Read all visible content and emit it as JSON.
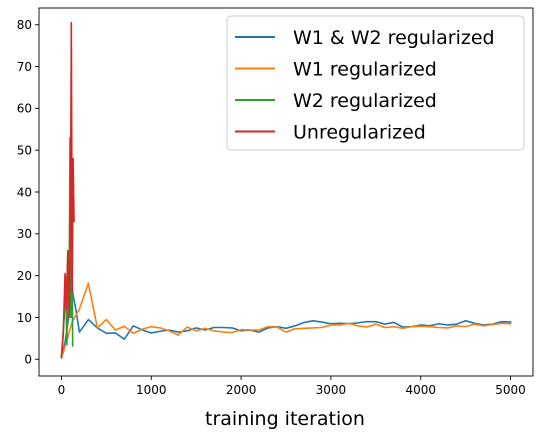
{
  "chart_data": {
    "type": "line",
    "title": "",
    "xlabel": "training iteration",
    "ylabel": "",
    "xlim": [
      -250,
      5250
    ],
    "ylim": [
      -4,
      84
    ],
    "xticks": [
      0,
      1000,
      2000,
      3000,
      4000,
      5000
    ],
    "yticks": [
      0,
      10,
      20,
      30,
      40,
      50,
      60,
      70,
      80
    ],
    "grid": false,
    "legend_position": "top-right",
    "series": [
      {
        "name": "W1 & W2 regularized",
        "color": "#1f77b4",
        "x": [
          0,
          40,
          80,
          120,
          160,
          200,
          300,
          400,
          500,
          600,
          700,
          800,
          900,
          1000,
          1100,
          1200,
          1300,
          1400,
          1500,
          1600,
          1700,
          1800,
          1900,
          2000,
          2100,
          2200,
          2300,
          2400,
          2500,
          2600,
          2700,
          2800,
          2900,
          3000,
          3100,
          3200,
          3300,
          3400,
          3500,
          3600,
          3700,
          3800,
          3900,
          4000,
          4100,
          4200,
          4300,
          4400,
          4500,
          4600,
          4700,
          4800,
          4900,
          5000
        ],
        "y": [
          0.5,
          4,
          10,
          16.5,
          12,
          6.5,
          9.5,
          7.5,
          6.2,
          6.3,
          4.8,
          8,
          7,
          6.3,
          6.7,
          7,
          6.5,
          6.8,
          7.5,
          7,
          7.6,
          7.6,
          7.5,
          6.8,
          7,
          6.5,
          7.5,
          7.8,
          7.4,
          8,
          8.8,
          9.2,
          8.9,
          8.5,
          8.6,
          8.5,
          8.7,
          9,
          9,
          8.4,
          8.8,
          7.7,
          7.8,
          8.2,
          8,
          8.5,
          8.2,
          8.4,
          9.2,
          8.6,
          8.2,
          8.4,
          9,
          8.9
        ]
      },
      {
        "name": "W1 regularized",
        "color": "#ff7f0e",
        "x": [
          0,
          40,
          80,
          120,
          160,
          200,
          300,
          400,
          500,
          600,
          700,
          800,
          900,
          1000,
          1100,
          1200,
          1300,
          1400,
          1500,
          1600,
          1700,
          1800,
          1900,
          2000,
          2100,
          2200,
          2300,
          2400,
          2500,
          2600,
          2700,
          2800,
          2900,
          3000,
          3100,
          3200,
          3300,
          3400,
          3500,
          3600,
          3700,
          3800,
          3900,
          4000,
          4100,
          4200,
          4300,
          4400,
          4500,
          4600,
          4700,
          4800,
          4900,
          5000
        ],
        "y": [
          0.3,
          3,
          6,
          9,
          10.5,
          12,
          18.2,
          7.5,
          9.5,
          7,
          7.9,
          6.2,
          7.2,
          7.8,
          7.5,
          6.8,
          5.8,
          7.7,
          6.8,
          7.4,
          6.8,
          6.5,
          6.4,
          7.1,
          7,
          7,
          7.8,
          7.7,
          6.5,
          7.3,
          7.4,
          7.5,
          7.6,
          8.2,
          8.2,
          8.6,
          8,
          7.7,
          8.4,
          7.6,
          7.8,
          7.4,
          7.8,
          7.9,
          7.8,
          7.6,
          7.5,
          8,
          7.8,
          8.4,
          8,
          8.3,
          8.6,
          8.5
        ]
      },
      {
        "name": "W2 regularized",
        "color": "#2ca02c",
        "x": [
          0,
          15,
          30,
          45,
          60,
          75,
          85,
          95,
          105,
          115,
          125
        ],
        "y": [
          0.5,
          5,
          10,
          20,
          3.5,
          25,
          15,
          53,
          10,
          35,
          3.2
        ]
      },
      {
        "name": "Unregularized",
        "color": "#d62728",
        "x": [
          0,
          20,
          40,
          55,
          70,
          85,
          100,
          110,
          120,
          130,
          140
        ],
        "y": [
          0.5,
          6,
          20.5,
          12,
          26,
          10,
          30,
          80.5,
          16,
          48,
          33
        ]
      }
    ]
  }
}
